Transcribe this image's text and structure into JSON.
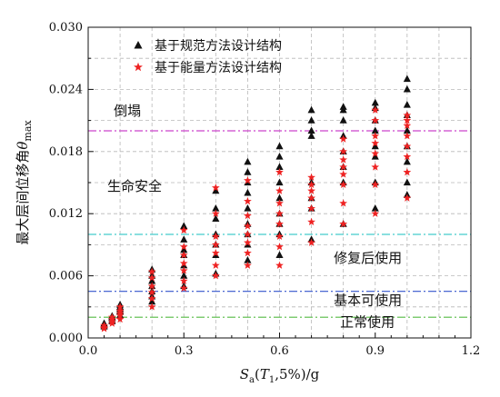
{
  "chart_data": {
    "type": "scatter",
    "xlabel_parts": {
      "s": "S",
      "a": "a",
      "open": "(",
      "t": "T",
      "one": "1",
      "rest": ",5%)/g"
    },
    "ylabel_parts": {
      "text": "最大层间位移角",
      "theta": "θ",
      "sub": "max"
    },
    "xlim": [
      0.0,
      1.2
    ],
    "ylim": [
      0.0,
      0.03
    ],
    "xticks": [
      "0.0",
      "0.3",
      "0.6",
      "0.9",
      "1.2"
    ],
    "yticks": [
      "0.000",
      "0.006",
      "0.012",
      "0.018",
      "0.024",
      "0.030"
    ],
    "grid": true,
    "legend_position": "top-left",
    "thresholds": [
      {
        "value": 0.002,
        "color": "#55bb44"
      },
      {
        "value": 0.0045,
        "color": "#3355cc"
      },
      {
        "value": 0.01,
        "color": "#44cccc"
      },
      {
        "value": 0.02,
        "color": "#cc44cc"
      }
    ],
    "zones": [
      {
        "label": "倒塌",
        "x": 0.08,
        "y": 0.0215
      },
      {
        "label": "生命安全",
        "x": 0.06,
        "y": 0.0142
      },
      {
        "label": "修复后使用",
        "x": 0.77,
        "y": 0.0073
      },
      {
        "label": "基本可使用",
        "x": 0.77,
        "y": 0.0032
      },
      {
        "label": "正常使用",
        "x": 0.79,
        "y": 0.0011
      }
    ],
    "series": [
      {
        "name": "基于规范方法设计结构",
        "marker": "triangle",
        "color": "#111111",
        "points": [
          [
            0.05,
            0.0012
          ],
          [
            0.05,
            0.0014
          ],
          [
            0.05,
            0.0011
          ],
          [
            0.05,
            0.0013
          ],
          [
            0.075,
            0.0016
          ],
          [
            0.075,
            0.002
          ],
          [
            0.075,
            0.0019
          ],
          [
            0.075,
            0.0017
          ],
          [
            0.075,
            0.0021
          ],
          [
            0.1,
            0.0022
          ],
          [
            0.1,
            0.0025
          ],
          [
            0.1,
            0.0028
          ],
          [
            0.1,
            0.003
          ],
          [
            0.1,
            0.0032
          ],
          [
            0.1,
            0.0026
          ],
          [
            0.2,
            0.0035
          ],
          [
            0.2,
            0.004
          ],
          [
            0.2,
            0.0045
          ],
          [
            0.2,
            0.005
          ],
          [
            0.2,
            0.0055
          ],
          [
            0.2,
            0.006
          ],
          [
            0.2,
            0.0066
          ],
          [
            0.3,
            0.005
          ],
          [
            0.3,
            0.006
          ],
          [
            0.3,
            0.007
          ],
          [
            0.3,
            0.008
          ],
          [
            0.3,
            0.0085
          ],
          [
            0.3,
            0.0095
          ],
          [
            0.3,
            0.0108
          ],
          [
            0.4,
            0.0062
          ],
          [
            0.4,
            0.008
          ],
          [
            0.4,
            0.009
          ],
          [
            0.4,
            0.01
          ],
          [
            0.4,
            0.0115
          ],
          [
            0.4,
            0.0125
          ],
          [
            0.4,
            0.0142
          ],
          [
            0.5,
            0.0075
          ],
          [
            0.5,
            0.009
          ],
          [
            0.5,
            0.01
          ],
          [
            0.5,
            0.011
          ],
          [
            0.5,
            0.0125
          ],
          [
            0.5,
            0.014
          ],
          [
            0.5,
            0.015
          ],
          [
            0.5,
            0.016
          ],
          [
            0.5,
            0.017
          ],
          [
            0.6,
            0.008
          ],
          [
            0.6,
            0.01
          ],
          [
            0.6,
            0.011
          ],
          [
            0.6,
            0.012
          ],
          [
            0.6,
            0.0135
          ],
          [
            0.6,
            0.015
          ],
          [
            0.6,
            0.0165
          ],
          [
            0.6,
            0.0175
          ],
          [
            0.6,
            0.0185
          ],
          [
            0.7,
            0.0095
          ],
          [
            0.7,
            0.0125
          ],
          [
            0.7,
            0.0135
          ],
          [
            0.7,
            0.015
          ],
          [
            0.7,
            0.0195
          ],
          [
            0.7,
            0.02
          ],
          [
            0.7,
            0.021
          ],
          [
            0.7,
            0.022
          ],
          [
            0.8,
            0.011
          ],
          [
            0.8,
            0.015
          ],
          [
            0.8,
            0.0165
          ],
          [
            0.8,
            0.018
          ],
          [
            0.8,
            0.0195
          ],
          [
            0.8,
            0.021
          ],
          [
            0.8,
            0.022
          ],
          [
            0.8,
            0.0223
          ],
          [
            0.9,
            0.0125
          ],
          [
            0.9,
            0.015
          ],
          [
            0.9,
            0.0175
          ],
          [
            0.9,
            0.0185
          ],
          [
            0.9,
            0.02
          ],
          [
            0.9,
            0.021
          ],
          [
            0.9,
            0.0222
          ],
          [
            0.9,
            0.0227
          ],
          [
            1.0,
            0.0138
          ],
          [
            1.0,
            0.015
          ],
          [
            1.0,
            0.017
          ],
          [
            1.0,
            0.0185
          ],
          [
            1.0,
            0.02
          ],
          [
            1.0,
            0.0215
          ],
          [
            1.0,
            0.0225
          ],
          [
            1.0,
            0.024
          ],
          [
            1.0,
            0.025
          ]
        ]
      },
      {
        "name": "基于能量方法设计结构",
        "marker": "star",
        "color": "#ee2222",
        "points": [
          [
            0.05,
            0.001
          ],
          [
            0.05,
            0.0012
          ],
          [
            0.05,
            0.0009
          ],
          [
            0.075,
            0.0014
          ],
          [
            0.075,
            0.0018
          ],
          [
            0.075,
            0.0016
          ],
          [
            0.075,
            0.002
          ],
          [
            0.1,
            0.0018
          ],
          [
            0.1,
            0.0022
          ],
          [
            0.1,
            0.0026
          ],
          [
            0.1,
            0.003
          ],
          [
            0.1,
            0.0024
          ],
          [
            0.2,
            0.003
          ],
          [
            0.2,
            0.0038
          ],
          [
            0.2,
            0.0044
          ],
          [
            0.2,
            0.005
          ],
          [
            0.2,
            0.0058
          ],
          [
            0.2,
            0.0064
          ],
          [
            0.3,
            0.0048
          ],
          [
            0.3,
            0.0055
          ],
          [
            0.3,
            0.0065
          ],
          [
            0.3,
            0.0072
          ],
          [
            0.3,
            0.008
          ],
          [
            0.3,
            0.0088
          ],
          [
            0.3,
            0.0104
          ],
          [
            0.4,
            0.006
          ],
          [
            0.4,
            0.007
          ],
          [
            0.4,
            0.0082
          ],
          [
            0.4,
            0.009
          ],
          [
            0.4,
            0.0098
          ],
          [
            0.4,
            0.012
          ],
          [
            0.4,
            0.0145
          ],
          [
            0.5,
            0.007
          ],
          [
            0.5,
            0.0082
          ],
          [
            0.5,
            0.0092
          ],
          [
            0.5,
            0.01
          ],
          [
            0.5,
            0.0108
          ],
          [
            0.5,
            0.0118
          ],
          [
            0.5,
            0.0132
          ],
          [
            0.5,
            0.0152
          ],
          [
            0.6,
            0.007
          ],
          [
            0.6,
            0.0088
          ],
          [
            0.6,
            0.0098
          ],
          [
            0.6,
            0.011
          ],
          [
            0.6,
            0.012
          ],
          [
            0.6,
            0.013
          ],
          [
            0.6,
            0.0142
          ],
          [
            0.6,
            0.016
          ],
          [
            0.7,
            0.0092
          ],
          [
            0.7,
            0.0112
          ],
          [
            0.7,
            0.0125
          ],
          [
            0.7,
            0.0135
          ],
          [
            0.7,
            0.0142
          ],
          [
            0.7,
            0.0148
          ],
          [
            0.7,
            0.0155
          ],
          [
            0.8,
            0.011
          ],
          [
            0.8,
            0.013
          ],
          [
            0.8,
            0.0148
          ],
          [
            0.8,
            0.0158
          ],
          [
            0.8,
            0.0165
          ],
          [
            0.8,
            0.0172
          ],
          [
            0.8,
            0.018
          ],
          [
            0.8,
            0.0192
          ],
          [
            0.9,
            0.012
          ],
          [
            0.9,
            0.0148
          ],
          [
            0.9,
            0.0165
          ],
          [
            0.9,
            0.0178
          ],
          [
            0.9,
            0.0188
          ],
          [
            0.9,
            0.0195
          ],
          [
            0.9,
            0.021
          ],
          [
            0.9,
            0.022
          ],
          [
            1.0,
            0.0135
          ],
          [
            1.0,
            0.016
          ],
          [
            1.0,
            0.0175
          ],
          [
            1.0,
            0.0185
          ],
          [
            1.0,
            0.0195
          ],
          [
            1.0,
            0.0205
          ],
          [
            1.0,
            0.021
          ],
          [
            1.0,
            0.0215
          ]
        ]
      }
    ]
  }
}
